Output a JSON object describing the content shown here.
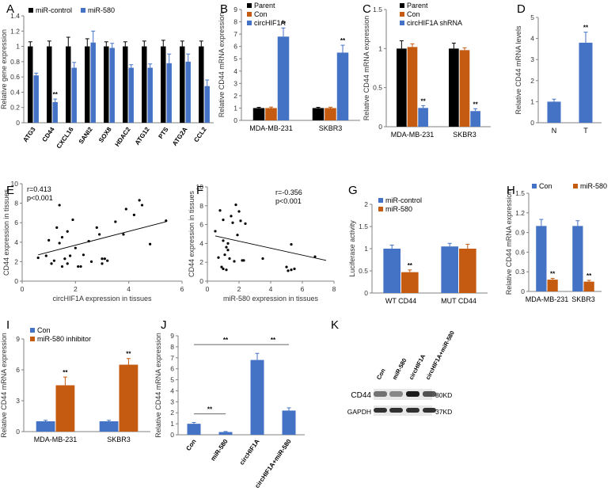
{
  "colors": {
    "black": "#000000",
    "blue": "#4472c4",
    "orange": "#c55a11",
    "axis": "#808080",
    "grid": "#d9d9d9"
  },
  "chart_data": [
    {
      "panel": "A",
      "type": "bar",
      "ylabel": "Relative gene expression",
      "ylim": [
        0,
        1.4
      ],
      "yticks": [
        "0",
        "0.2",
        "0.4",
        "0.6",
        "0.8",
        "1",
        "1.2",
        "1.4"
      ],
      "categories": [
        "ATG3",
        "CD44",
        "CXCL16",
        "SANI2",
        "SOX8",
        "HDAC2",
        "ATG12",
        "PTS",
        "ATG2A",
        "CCL2"
      ],
      "series": [
        {
          "name": "miR-control",
          "color": "#000000",
          "values": [
            1,
            1,
            1,
            1,
            1,
            1,
            1,
            1,
            1,
            1
          ],
          "err": [
            0.06,
            0.07,
            0.12,
            0.1,
            0.06,
            0.06,
            0.07,
            0.08,
            0.07,
            0.07
          ]
        },
        {
          "name": "miR-580",
          "color": "#4472c4",
          "values": [
            0.62,
            0.27,
            0.72,
            1.05,
            0.98,
            0.72,
            0.72,
            0.78,
            0.8,
            0.48
          ],
          "err": [
            0.03,
            0.04,
            0.07,
            0.15,
            0.06,
            0.04,
            0.05,
            0.12,
            0.1,
            0.08
          ]
        }
      ],
      "sig": [
        {
          "cat": 1,
          "series": 1,
          "label": "**"
        }
      ],
      "legend": "top"
    },
    {
      "panel": "B",
      "type": "bar",
      "ylabel": "Relative CD44 mRNA expression",
      "ylim": [
        0,
        9
      ],
      "yticks": [
        "0",
        "1",
        "2",
        "3",
        "4",
        "5",
        "6",
        "7",
        "8",
        "9"
      ],
      "categories": [
        "MDA-MB-231",
        "SKBR3"
      ],
      "series": [
        {
          "name": "Parent",
          "color": "#000000",
          "values": [
            1,
            1
          ],
          "err": [
            0.06,
            0.06
          ]
        },
        {
          "name": "Con",
          "color": "#c55a11",
          "values": [
            1,
            1
          ],
          "err": [
            0.08,
            0.07
          ]
        },
        {
          "name": "circHIF1A",
          "color": "#4472c4",
          "values": [
            6.8,
            5.5
          ],
          "err": [
            0.7,
            0.6
          ]
        }
      ],
      "sig": [
        {
          "cat": 0,
          "series": 2,
          "label": "**"
        },
        {
          "cat": 1,
          "series": 2,
          "label": "**"
        }
      ],
      "legend": "top-left"
    },
    {
      "panel": "C",
      "type": "bar",
      "ylabel": "Relative CD44 mRNA expression",
      "ylim": [
        0,
        1.5
      ],
      "yticks": [
        "0",
        "0.5",
        "1",
        "1.5"
      ],
      "categories": [
        "MDA-MB-231",
        "SKBR3"
      ],
      "series": [
        {
          "name": "Parent",
          "color": "#000000",
          "values": [
            1,
            1
          ],
          "err": [
            0.1,
            0.07
          ]
        },
        {
          "name": "Con",
          "color": "#c55a11",
          "values": [
            1.02,
            0.98
          ],
          "err": [
            0.04,
            0.03
          ]
        },
        {
          "name": "circHIF1A shRNA",
          "color": "#4472c4",
          "values": [
            0.24,
            0.2
          ],
          "err": [
            0.03,
            0.03
          ]
        }
      ],
      "sig": [
        {
          "cat": 0,
          "series": 2,
          "label": "**"
        },
        {
          "cat": 1,
          "series": 2,
          "label": "**"
        }
      ],
      "legend": "top-left"
    },
    {
      "panel": "D",
      "type": "bar",
      "ylabel": "Relative CD44 mRNA levels",
      "ylim": [
        0,
        5
      ],
      "yticks": [
        "0",
        "1",
        "2",
        "3",
        "4",
        "5"
      ],
      "categories": [
        "N",
        "T"
      ],
      "series": [
        {
          "name": "",
          "color": "#4472c4",
          "values": [
            1,
            3.8
          ],
          "err": [
            0.12,
            0.5
          ]
        }
      ],
      "sig": [
        {
          "cat": 1,
          "series": 0,
          "label": "**"
        }
      ],
      "legend": "none"
    },
    {
      "panel": "E",
      "type": "scatter",
      "xlabel": "circHIF1A expression in tissues",
      "ylabel": "CD44 expression in tissues",
      "xlim": [
        0,
        6
      ],
      "ylim": [
        0,
        10
      ],
      "xticks": [
        "0",
        "2",
        "4",
        "6"
      ],
      "yticks": [
        "0",
        "2",
        "4",
        "6",
        "8",
        "10"
      ],
      "annotation": [
        "r=0.413",
        "p<0.001"
      ],
      "points": [
        [
          0.6,
          2.4
        ],
        [
          0.9,
          2.6
        ],
        [
          1,
          4.2
        ],
        [
          1.1,
          1.8
        ],
        [
          1.2,
          2.1
        ],
        [
          1.3,
          5.5
        ],
        [
          1.4,
          3.9
        ],
        [
          1.5,
          1.5
        ],
        [
          1.5,
          4.5
        ],
        [
          1.6,
          2.3
        ],
        [
          1.7,
          1.8
        ],
        [
          1.7,
          5.1
        ],
        [
          1.8,
          2.6
        ],
        [
          1.9,
          6.3
        ],
        [
          2.0,
          3.4
        ],
        [
          2.1,
          1.5
        ],
        [
          2.2,
          1.5
        ],
        [
          2.3,
          2.7
        ],
        [
          2.5,
          4.1
        ],
        [
          2.6,
          2.0
        ],
        [
          2.8,
          5.5
        ],
        [
          2.9,
          4.8
        ],
        [
          3.0,
          2.3
        ],
        [
          3.0,
          1.8
        ],
        [
          3.1,
          2.3
        ],
        [
          3.2,
          2.1
        ],
        [
          3.5,
          6.1
        ],
        [
          3.8,
          4.8
        ],
        [
          3.9,
          7.4
        ],
        [
          4.2,
          6.8
        ],
        [
          4.4,
          8.3
        ],
        [
          4.5,
          7.8
        ],
        [
          4.8,
          3.8
        ],
        [
          5.4,
          6.2
        ],
        [
          1.4,
          7.8
        ]
      ],
      "fit": [
        [
          0.6,
          2.7
        ],
        [
          5.4,
          6.1
        ]
      ]
    },
    {
      "panel": "F",
      "type": "scatter",
      "xlabel": "miR-580 expression in tissues",
      "ylabel": "CD44 expression in tissues",
      "xlim": [
        0,
        8
      ],
      "ylim": [
        0,
        10
      ],
      "xticks": [
        "0",
        "2",
        "4",
        "6",
        "8"
      ],
      "yticks": [
        "0",
        "2",
        "4",
        "6",
        "8",
        "10"
      ],
      "annotation": [
        "r=-0.356",
        "p<0.001"
      ],
      "points": [
        [
          0.5,
          5.3
        ],
        [
          0.7,
          2.5
        ],
        [
          0.8,
          7.5
        ],
        [
          0.9,
          1.5
        ],
        [
          1.0,
          4.3
        ],
        [
          1.0,
          6.5
        ],
        [
          1.1,
          2.8
        ],
        [
          1.2,
          3.6
        ],
        [
          1.3,
          3.3
        ],
        [
          1.3,
          4.0
        ],
        [
          1.4,
          2.4
        ],
        [
          1.5,
          6.9
        ],
        [
          1.6,
          6.2
        ],
        [
          1.7,
          2.1
        ],
        [
          1.8,
          8.1
        ],
        [
          1.9,
          4.9
        ],
        [
          2.0,
          7.4
        ],
        [
          2.1,
          6.4
        ],
        [
          2.2,
          2.2
        ],
        [
          2.3,
          2.2
        ],
        [
          2.4,
          6.1
        ],
        [
          3.5,
          2.4
        ],
        [
          5.0,
          1.5
        ],
        [
          5.1,
          1.1
        ],
        [
          5.3,
          1.2
        ],
        [
          5.3,
          3.9
        ],
        [
          5.5,
          1.3
        ],
        [
          6.8,
          2.6
        ],
        [
          1.2,
          1.2
        ],
        [
          1.0,
          1.3
        ]
      ],
      "fit": [
        [
          0.5,
          4.8
        ],
        [
          7.5,
          2.2
        ]
      ]
    },
    {
      "panel": "G",
      "type": "bar",
      "ylabel": "Luciferase activity",
      "ylim": [
        0,
        2
      ],
      "yticks": [
        "0",
        "0.5",
        "1",
        "1.5",
        "2"
      ],
      "categories": [
        "WT CD44",
        "MUT CD44"
      ],
      "series": [
        {
          "name": "miR-control",
          "color": "#4472c4",
          "values": [
            1,
            1.05
          ],
          "err": [
            0.08,
            0.07
          ]
        },
        {
          "name": "miR-580",
          "color": "#c55a11",
          "values": [
            0.47,
            1
          ],
          "err": [
            0.05,
            0.1
          ]
        }
      ],
      "sig": [
        {
          "cat": 0,
          "series": 1,
          "label": "**"
        }
      ],
      "legend": "top-left"
    },
    {
      "panel": "H",
      "type": "bar",
      "ylabel": "Relative CD44 mRNA expression",
      "ylim": [
        0,
        1.5
      ],
      "yticks": [
        "0",
        "0.3",
        "0.6",
        "0.9",
        "1.2",
        "1.5"
      ],
      "categories": [
        "MDA-MB-231",
        "SKBR3"
      ],
      "series": [
        {
          "name": "Con",
          "color": "#4472c4",
          "values": [
            1,
            1
          ],
          "err": [
            0.1,
            0.08
          ]
        },
        {
          "name": "miR-580",
          "color": "#c55a11",
          "values": [
            0.18,
            0.15
          ],
          "err": [
            0.02,
            0.02
          ]
        }
      ],
      "sig": [
        {
          "cat": 0,
          "series": 1,
          "label": "**"
        },
        {
          "cat": 1,
          "series": 1,
          "label": "**"
        }
      ],
      "legend": "top"
    },
    {
      "panel": "I",
      "type": "bar",
      "ylabel": "Relative CD44 mRNA expression",
      "ylim": [
        0,
        9
      ],
      "yticks": [
        "0",
        "3",
        "6",
        "9"
      ],
      "categories": [
        "MDA-MB-231",
        "SKBR3"
      ],
      "series": [
        {
          "name": "Con",
          "color": "#4472c4",
          "values": [
            1,
            1
          ],
          "err": [
            0.1,
            0.1
          ]
        },
        {
          "name": "miR-580 inhibitor",
          "color": "#c55a11",
          "values": [
            4.5,
            6.5
          ],
          "err": [
            0.8,
            0.6
          ]
        }
      ],
      "sig": [
        {
          "cat": 0,
          "series": 1,
          "label": "**"
        },
        {
          "cat": 1,
          "series": 1,
          "label": "**"
        }
      ],
      "legend": "top-left"
    },
    {
      "panel": "J",
      "type": "bar",
      "ylabel": "Relative CD44 mRNA expression",
      "ylim": [
        0,
        9
      ],
      "yticks": [
        "0",
        "1",
        "2",
        "3",
        "4",
        "5",
        "6",
        "7",
        "8",
        "9"
      ],
      "categories": [
        "Con",
        "miR-580",
        "circHIF1A",
        "circHIF1A+miR-580"
      ],
      "series": [
        {
          "name": "",
          "color": "#4472c4",
          "values": [
            1,
            0.25,
            6.8,
            2.2
          ],
          "err": [
            0.12,
            0.05,
            0.6,
            0.25
          ]
        }
      ],
      "brackets": [
        {
          "from": 0,
          "to": 1,
          "y": 1.9,
          "label": "**"
        },
        {
          "from": 0,
          "to": 2,
          "y": 8.2,
          "label": "**"
        },
        {
          "from": 2,
          "to": 3,
          "y": 8.2,
          "label": "**"
        }
      ],
      "legend": "none"
    }
  ],
  "blot": {
    "panel": "K",
    "lanes": [
      "Con",
      "miR-580",
      "circHIF1A",
      "circHIF1A+miR-580"
    ],
    "rows": [
      {
        "label": "CD44",
        "size": "80KD"
      },
      {
        "label": "GAPDH",
        "size": "37KD"
      }
    ]
  }
}
